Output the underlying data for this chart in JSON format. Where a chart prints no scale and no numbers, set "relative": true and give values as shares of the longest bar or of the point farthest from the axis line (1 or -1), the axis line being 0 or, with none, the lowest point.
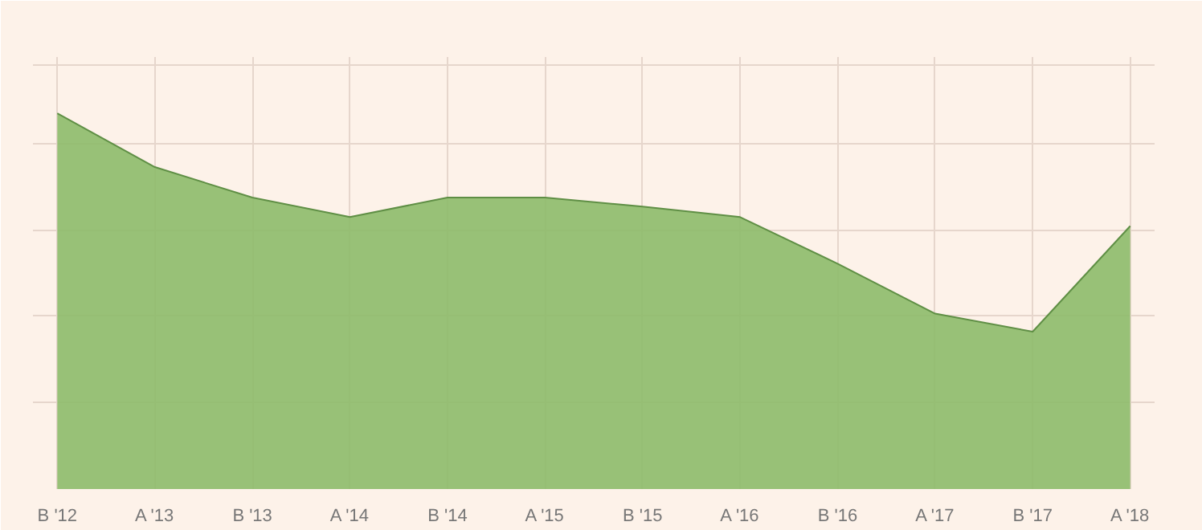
{
  "chart_data": {
    "type": "area",
    "relative": true,
    "categories": [
      "B '12",
      "A '13",
      "B '13",
      "A '14",
      "B '14",
      "A '15",
      "B '15",
      "A '16",
      "B '16",
      "A '17",
      "B '17",
      "A '18"
    ],
    "series": [
      {
        "color": "#8dbb6a",
        "values": [
          1,
          0.857,
          0.776,
          0.724,
          0.776,
          0.776,
          0.752,
          0.724,
          0.6,
          0.467,
          0.419,
          0.7
        ]
      }
    ],
    "grid": true
  }
}
